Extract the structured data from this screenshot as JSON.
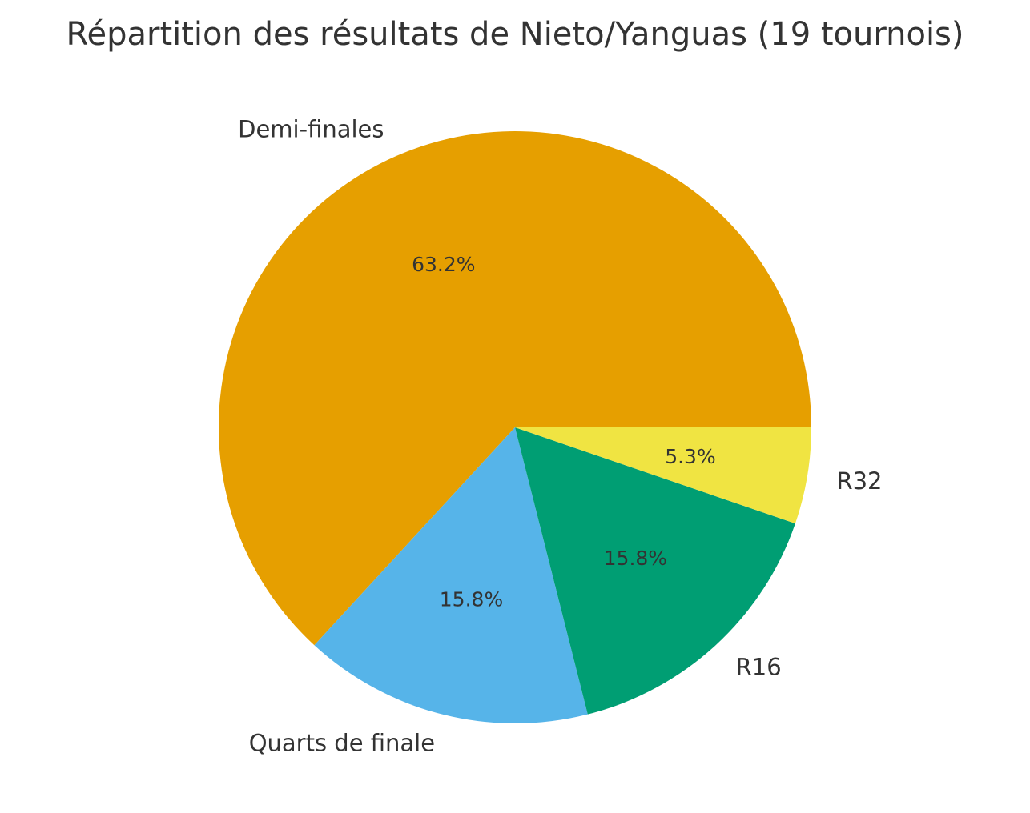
{
  "chart_data": {
    "type": "pie",
    "title": "Répartition des résultats de Nieto/Yanguas (19 tournois)",
    "start_angle_deg": 0,
    "direction": "counterclockwise",
    "slices": [
      {
        "label": "Demi-finales",
        "value": 12,
        "pct_label": "63.2%",
        "color": "#E69F00"
      },
      {
        "label": "Quarts de finale",
        "value": 3,
        "pct_label": "15.8%",
        "color": "#56B4E9"
      },
      {
        "label": "R16",
        "value": 3,
        "pct_label": "15.8%",
        "color": "#009E73"
      },
      {
        "label": "R32",
        "value": 1,
        "pct_label": "5.3%",
        "color": "#F0E442"
      }
    ]
  }
}
